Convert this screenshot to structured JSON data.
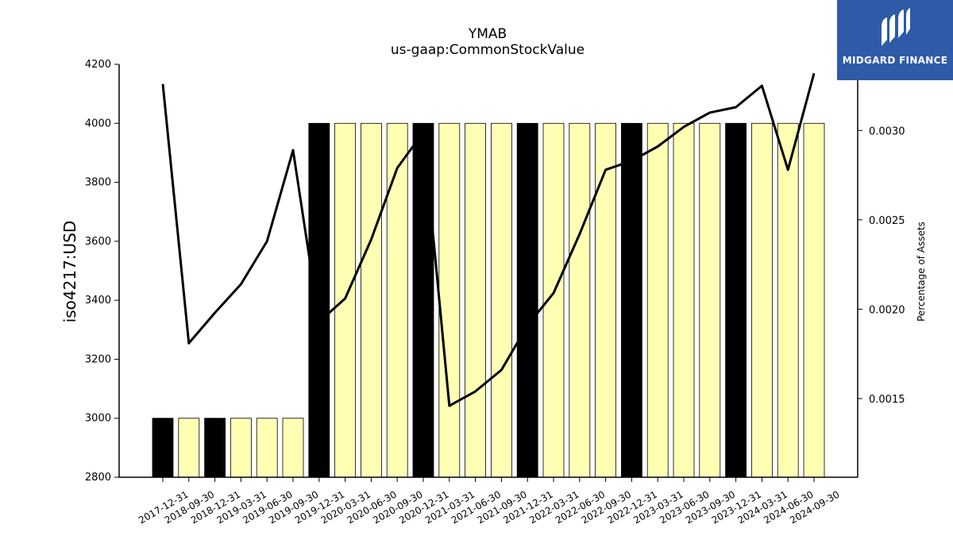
{
  "chart_data": {
    "type": "bar",
    "title": "YMAB",
    "subtitle": "us-gaap:CommonStockValue",
    "ylabel": "iso4217:USD",
    "y2label": "Percentage of Assets",
    "ylim": [
      2800,
      4200
    ],
    "y2lim": [
      0.00106,
      0.00337
    ],
    "yticks": [
      2800,
      3000,
      3200,
      3400,
      3600,
      3800,
      4000,
      4200
    ],
    "y2ticks": [
      "0.0015",
      "0.0020",
      "0.0025",
      "0.0030"
    ],
    "categories": [
      "2017-12-31",
      "2018-09-30",
      "2018-12-31",
      "2019-03-31",
      "2019-06-30",
      "2019-09-30",
      "2019-12-31",
      "2020-03-31",
      "2020-06-30",
      "2020-09-30",
      "2020-12-31",
      "2021-03-31",
      "2021-06-30",
      "2021-09-30",
      "2021-12-31",
      "2022-03-31",
      "2022-06-30",
      "2022-09-30",
      "2022-12-31",
      "2023-03-31",
      "2023-06-30",
      "2023-09-30",
      "2023-12-31",
      "2024-03-31",
      "2024-06-30",
      "2024-09-30"
    ],
    "series": [
      {
        "kind": "bar",
        "values": [
          3000,
          3000,
          3000,
          3000,
          3000,
          3000,
          4000,
          4000,
          4000,
          4000,
          4000,
          4000,
          4000,
          4000,
          4000,
          4000,
          4000,
          4000,
          4000,
          4000,
          4000,
          4000,
          4000,
          4000,
          4000,
          4000
        ],
        "annual": [
          true,
          false,
          true,
          false,
          false,
          false,
          true,
          false,
          false,
          false,
          true,
          false,
          false,
          false,
          true,
          false,
          false,
          false,
          true,
          false,
          false,
          false,
          true,
          false,
          false,
          false
        ]
      },
      {
        "kind": "line",
        "axis": "right",
        "values": [
          0.00326,
          0.00181,
          0.00198,
          0.00214,
          0.00238,
          0.00289,
          0.00193,
          0.00206,
          0.00239,
          0.00279,
          0.00299,
          0.00146,
          0.00154,
          0.00166,
          0.00191,
          0.00209,
          0.00242,
          0.00278,
          0.00283,
          0.00291,
          0.00302,
          0.0031,
          0.00313,
          0.00325,
          0.00278,
          0.00332
        ]
      }
    ],
    "colors": {
      "annual_bar": "#000000",
      "quarter_bar": "#ffffb4",
      "line": "#000000"
    }
  },
  "logo": {
    "name": "MIDGARD FINANCE",
    "color": "#2f5aa8"
  }
}
